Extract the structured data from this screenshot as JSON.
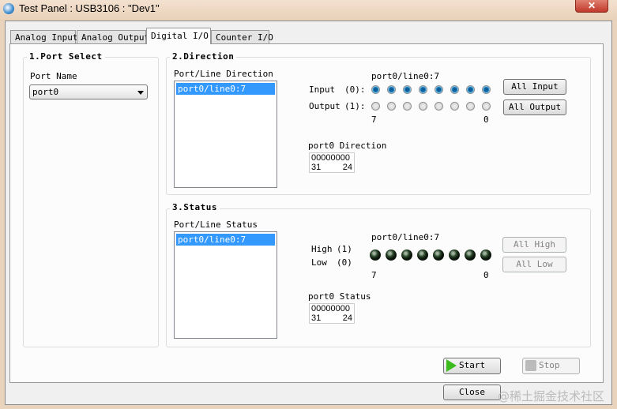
{
  "window": {
    "title": "Test Panel : USB3106 : \"Dev1\"",
    "close": "✕"
  },
  "tabs": [
    {
      "label": "Analog Input"
    },
    {
      "label": "Analog Output"
    },
    {
      "label": "Digital I/O",
      "active": true
    },
    {
      "label": "Counter I/O"
    }
  ],
  "port_select": {
    "title": "1.Port Select",
    "port_name_label": "Port Name",
    "port_name_value": "port0"
  },
  "direction": {
    "title": "2.Direction",
    "list_label": "Port/Line Direction",
    "list_items": [
      "port0/line0:7"
    ],
    "lines_label": "port0/line0:7",
    "input_label": "Input",
    "input_code": "(0):",
    "output_label": "Output",
    "output_code": "(1):",
    "bit_high": "7",
    "bit_low": "0",
    "lines_input_selected": [
      true,
      true,
      true,
      true,
      true,
      true,
      true,
      true
    ],
    "all_input": "All Input",
    "all_output": "All Output",
    "dir_label": "port0 Direction",
    "dir_value": "00000000",
    "dir_range_hi": "31",
    "dir_range_lo": "24"
  },
  "status": {
    "title": "3.Status",
    "list_label": "Port/Line Status",
    "list_items": [
      "port0/line0:7"
    ],
    "lines_label": "port0/line0:7",
    "high_label": "High",
    "high_code": "(1)",
    "low_label": "Low",
    "low_code": "(0)",
    "bit_high": "7",
    "bit_low": "0",
    "lines_state": [
      0,
      0,
      0,
      0,
      0,
      0,
      0,
      0
    ],
    "all_high": "All High",
    "all_low": "All Low",
    "status_label": "port0 Status",
    "status_value": "00000000",
    "status_range_hi": "31",
    "status_range_lo": "24"
  },
  "buttons": {
    "start": "Start",
    "stop": "Stop",
    "close": "Close"
  },
  "watermark": "@稀土掘金技术社区"
}
